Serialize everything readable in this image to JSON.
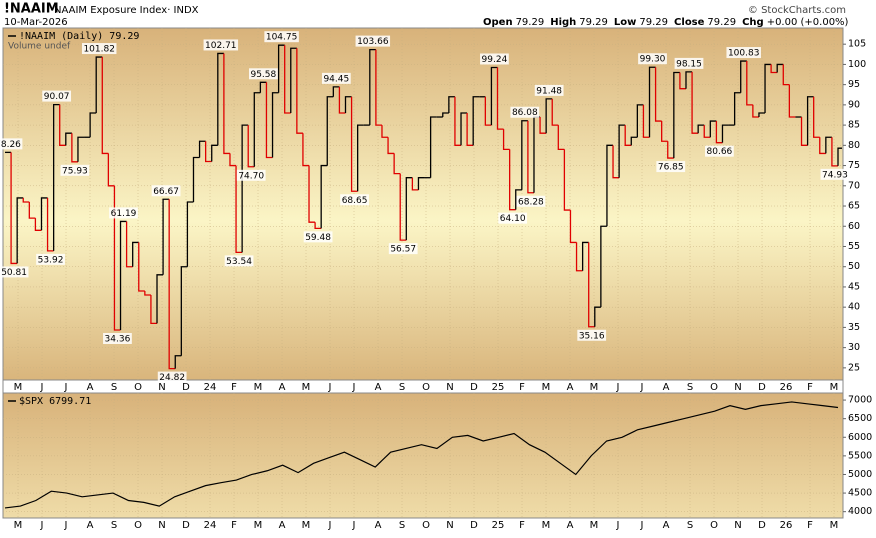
{
  "header": {
    "symbol": "!NAAIM",
    "name": "NAAIM Exposure Index· INDX",
    "date": "10-Mar-2026",
    "copyright": "© StockCharts.com",
    "quote": [
      {
        "label": "Open",
        "value": "79.29"
      },
      {
        "label": "High",
        "value": "79.29"
      },
      {
        "label": "Low",
        "value": "79.29"
      },
      {
        "label": "Close",
        "value": "79.29"
      },
      {
        "label": "Chg",
        "value": "+0.00 (+0.00%)"
      }
    ]
  },
  "chart_data": [
    {
      "type": "step",
      "legend": "!NAAIM (Daily)",
      "note": "Volume undef",
      "up_color": "#000000",
      "down_color": "#e00000",
      "xtick_labels": [
        "M",
        "J",
        "J",
        "A",
        "S",
        "O",
        "N",
        "D",
        "24",
        "F",
        "M",
        "A",
        "M",
        "J",
        "J",
        "A",
        "S",
        "O",
        "N",
        "D",
        "25",
        "F",
        "M",
        "A",
        "M",
        "J",
        "J",
        "A",
        "S",
        "O",
        "N",
        "D",
        "26",
        "F",
        "M"
      ],
      "ylim": [
        22,
        109
      ],
      "yticks": [
        25,
        30,
        35,
        40,
        45,
        50,
        55,
        60,
        65,
        70,
        75,
        80,
        85,
        90,
        95,
        100,
        105
      ],
      "grid": true,
      "values": [
        78.26,
        50.81,
        67,
        66,
        62,
        59,
        67,
        53.92,
        90.07,
        80,
        83,
        75.93,
        82,
        82,
        88,
        101.82,
        78,
        70,
        34.36,
        61.19,
        50,
        56,
        44,
        43,
        36,
        48,
        66.67,
        24.82,
        28,
        50,
        66,
        77,
        81,
        76,
        80,
        102.71,
        78,
        75,
        53.54,
        85,
        74.7,
        93,
        95.58,
        77,
        93,
        104.75,
        88,
        104,
        83,
        75,
        61,
        59.48,
        75,
        92,
        94.45,
        88,
        92,
        68.65,
        85,
        85,
        103.66,
        85,
        82,
        78,
        73,
        56.57,
        72,
        69,
        72,
        72,
        87,
        87,
        88,
        92,
        80,
        88,
        80,
        92,
        92,
        85,
        99.24,
        84,
        79,
        64.1,
        69,
        86.08,
        68.28,
        87,
        83,
        91.48,
        85,
        79,
        64,
        56,
        49,
        56,
        35.16,
        40,
        60,
        80,
        72,
        85,
        80,
        82,
        90,
        82,
        99.3,
        86,
        81,
        76.85,
        98,
        94,
        98.15,
        83,
        85,
        82,
        86,
        80.66,
        85,
        85,
        93,
        100.83,
        90,
        87,
        88,
        100,
        98,
        100,
        95,
        87,
        87,
        80,
        92,
        82,
        78,
        82,
        74.93,
        79.29
      ],
      "value_labels": [
        "78.26",
        "50.81",
        null,
        null,
        null,
        null,
        null,
        "53.92",
        "90.07",
        null,
        null,
        "75.93",
        null,
        null,
        null,
        "101.82",
        null,
        null,
        "34.36",
        "61.19",
        null,
        null,
        null,
        null,
        null,
        null,
        "66.67",
        "24.82",
        null,
        null,
        null,
        null,
        null,
        null,
        null,
        "102.71",
        null,
        null,
        "53.54",
        null,
        "74.70",
        null,
        "95.58",
        null,
        null,
        "104.75",
        null,
        null,
        null,
        null,
        null,
        "59.48",
        null,
        null,
        "94.45",
        null,
        null,
        "68.65",
        null,
        null,
        "103.66",
        null,
        null,
        null,
        null,
        "56.57",
        null,
        null,
        null,
        null,
        null,
        null,
        null,
        null,
        null,
        null,
        null,
        null,
        null,
        null,
        "99.24",
        null,
        null,
        "64.10",
        null,
        "86.08",
        "68.28",
        null,
        null,
        "91.48",
        null,
        null,
        null,
        null,
        null,
        null,
        "35.16",
        null,
        null,
        null,
        null,
        null,
        null,
        null,
        null,
        null,
        "99.30",
        null,
        null,
        "76.85",
        null,
        null,
        "98.15",
        null,
        null,
        null,
        null,
        "80.66",
        null,
        null,
        null,
        "100.83",
        null,
        null,
        null,
        null,
        null,
        null,
        null,
        null,
        null,
        null,
        null,
        null,
        null,
        null,
        "74.93",
        null
      ]
    },
    {
      "type": "line",
      "legend": "$SPX",
      "color": "#000000",
      "xtick_labels": [
        "M",
        "J",
        "J",
        "A",
        "S",
        "O",
        "N",
        "D",
        "24",
        "F",
        "M",
        "A",
        "M",
        "J",
        "J",
        "A",
        "S",
        "O",
        "N",
        "D",
        "25",
        "F",
        "M",
        "A",
        "M",
        "J",
        "J",
        "A",
        "S",
        "O",
        "N",
        "D",
        "26",
        "F",
        "M"
      ],
      "ylim": [
        3830,
        7190
      ],
      "yticks": [
        4000,
        4500,
        5000,
        5500,
        6000,
        6500,
        7000
      ],
      "grid": true,
      "values": [
        4100,
        4150,
        4300,
        4550,
        4500,
        4400,
        4450,
        4500,
        4300,
        4250,
        4150,
        4400,
        4550,
        4700,
        4780,
        4850,
        5000,
        5100,
        5250,
        5050,
        5300,
        5450,
        5600,
        5400,
        5200,
        5600,
        5700,
        5800,
        5700,
        6000,
        6050,
        5900,
        6000,
        6100,
        5800,
        5600,
        5300,
        5000,
        5500,
        5900,
        6000,
        6200,
        6300,
        6400,
        6500,
        6600,
        6700,
        6850,
        6750,
        6850,
        6900,
        6950,
        6900,
        6850,
        6799.71
      ]
    }
  ]
}
